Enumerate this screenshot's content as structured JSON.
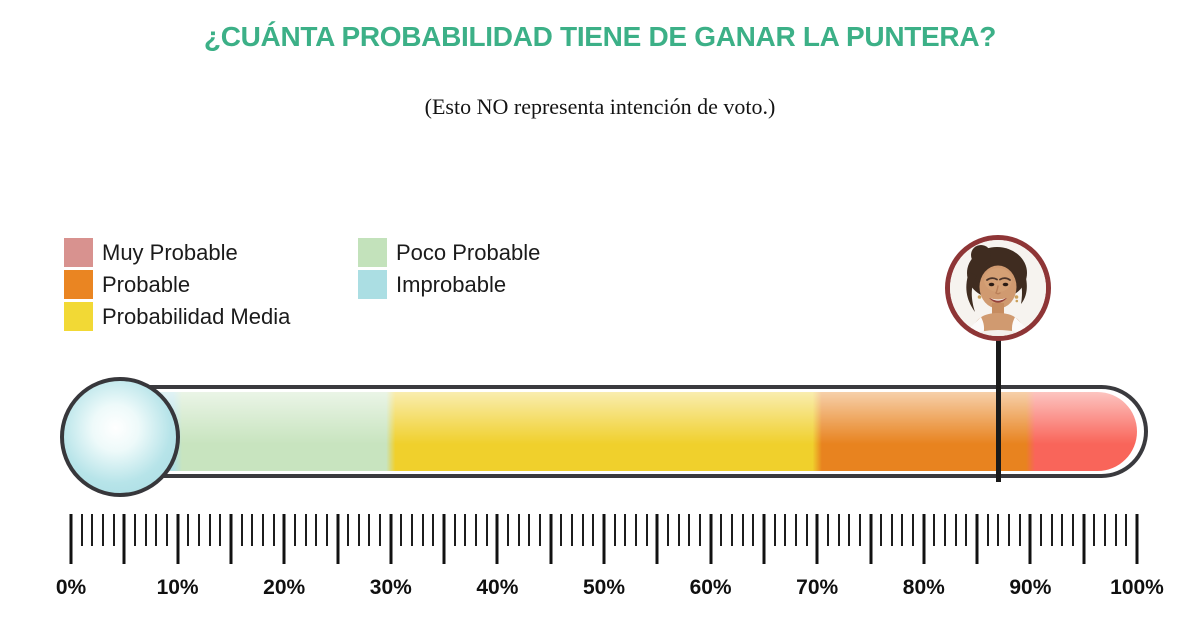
{
  "title": "¿CUÁNTA PROBABILIDAD TIENE DE GANAR LA PUNTERA?",
  "subtitle": "(Esto NO representa intención de voto.)",
  "colors": {
    "title_green": "#3cb087",
    "text": "#1b1b1b",
    "tube_outline": "#3a3a3e",
    "marker_line": "#1a1a1a",
    "avatar_ring": "#8e3536",
    "bulb_fill": "#b7e4e9"
  },
  "legend": {
    "columns": [
      {
        "items": [
          {
            "label": "Muy Probable",
            "color": "#d8928f"
          },
          {
            "label": "Probable",
            "color": "#ea8522"
          },
          {
            "label": "Probabilidad Media",
            "color": "#f2d935"
          }
        ]
      },
      {
        "items": [
          {
            "label": "Poco Probable",
            "color": "#c3e2bb"
          },
          {
            "label": "Improbable",
            "color": "#abdee3"
          }
        ]
      }
    ]
  },
  "chart_data": {
    "type": "gauge-thermometer",
    "title": "¿CUÁNTA PROBABILIDAD TIENE DE GANAR LA PUNTERA?",
    "note": "(Esto NO representa intención de voto.)",
    "axis": {
      "min": 0,
      "max": 100,
      "unit": "%",
      "tick_step": 1,
      "major_tick_step": 5,
      "label_step": 10,
      "labels": [
        "0%",
        "10%",
        "20%",
        "30%",
        "40%",
        "50%",
        "60%",
        "70%",
        "80%",
        "90%",
        "100%"
      ]
    },
    "segments": [
      {
        "label": "Improbable",
        "from": 0,
        "to": 10,
        "color": "#aedee4"
      },
      {
        "label": "Poco Probable",
        "from": 10,
        "to": 30,
        "color": "#c8e4bf"
      },
      {
        "label": "Probabilidad Media",
        "from": 30,
        "to": 70,
        "color": "#f0d02c"
      },
      {
        "label": "Probable",
        "from": 70,
        "to": 90,
        "color": "#e8831f"
      },
      {
        "label": "Muy Probable",
        "from": 90,
        "to": 100,
        "color": "#f9655a"
      }
    ],
    "marker": {
      "value": 87,
      "zone": "Probable",
      "description": "Foto circular de la candidata puntera señalando ~87% en la escala"
    },
    "legend_position": "top-left",
    "grid": false
  }
}
